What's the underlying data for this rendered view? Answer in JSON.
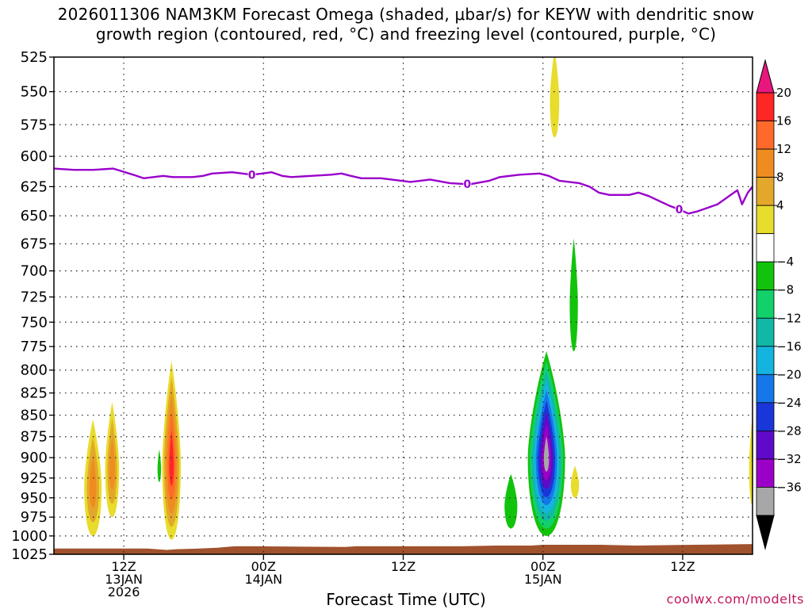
{
  "chart_data": {
    "type": "contour",
    "title_lines": [
      "2026011306 NAM3KM Forecast Omega (shaded, μbar/s) for KEYW with dendritic snow",
      "growth region (contoured, red, °C) and freezing level (contoured, purple, °C)"
    ],
    "xlabel": "Forecast Time (UTC)",
    "credit": "coolwx.com/modelts",
    "y_axis": {
      "unit": "hPa",
      "inverted": true,
      "range": [
        1025,
        525
      ],
      "ticks": [
        525,
        550,
        575,
        600,
        625,
        650,
        675,
        700,
        725,
        750,
        775,
        800,
        825,
        850,
        875,
        900,
        925,
        950,
        975,
        1000,
        1025
      ]
    },
    "x_axis": {
      "range_hours": [
        0,
        60
      ],
      "ticks": [
        {
          "hour": 6,
          "lines": [
            "12Z",
            "13JAN",
            "2026"
          ]
        },
        {
          "hour": 18,
          "lines": [
            "00Z",
            "14JAN"
          ]
        },
        {
          "hour": 30,
          "lines": [
            "12Z"
          ]
        },
        {
          "hour": 42,
          "lines": [
            "00Z",
            "15JAN"
          ]
        },
        {
          "hour": 54,
          "lines": [
            "12Z"
          ]
        }
      ]
    },
    "grid": "dotted",
    "freezing_level": {
      "color": "#9900cc",
      "label": "0",
      "label_hours": [
        17,
        35.5,
        53.7
      ],
      "points": [
        [
          0,
          610
        ],
        [
          1.7,
          611
        ],
        [
          3.4,
          611
        ],
        [
          5.1,
          610
        ],
        [
          6.8,
          615
        ],
        [
          7.7,
          618
        ],
        [
          9.4,
          616
        ],
        [
          10.2,
          617
        ],
        [
          11.9,
          617
        ],
        [
          12.8,
          616
        ],
        [
          13.6,
          614
        ],
        [
          15.3,
          613
        ],
        [
          17.0,
          615
        ],
        [
          17.9,
          614
        ],
        [
          18.7,
          613
        ],
        [
          19.6,
          616
        ],
        [
          20.4,
          617
        ],
        [
          22.1,
          616
        ],
        [
          23.8,
          615
        ],
        [
          24.7,
          614
        ],
        [
          25.5,
          616
        ],
        [
          26.4,
          618
        ],
        [
          28.1,
          618
        ],
        [
          29.8,
          620
        ],
        [
          30.6,
          621
        ],
        [
          31.5,
          620
        ],
        [
          32.3,
          619
        ],
        [
          34.0,
          622
        ],
        [
          35.7,
          623
        ],
        [
          37.4,
          620
        ],
        [
          38.3,
          617
        ],
        [
          40.0,
          615
        ],
        [
          41.7,
          614
        ],
        [
          42.5,
          616
        ],
        [
          43.4,
          620
        ],
        [
          45.1,
          622
        ],
        [
          46.0,
          625
        ],
        [
          46.8,
          630
        ],
        [
          47.7,
          632
        ],
        [
          49.4,
          632
        ],
        [
          50.2,
          630
        ],
        [
          51.1,
          633
        ],
        [
          52.8,
          641
        ],
        [
          53.6,
          644
        ],
        [
          54.5,
          648
        ],
        [
          55.3,
          646
        ],
        [
          57.0,
          640
        ],
        [
          58.7,
          628
        ],
        [
          59.1,
          640
        ],
        [
          59.6,
          630
        ],
        [
          60,
          625
        ]
      ]
    },
    "colorbar": {
      "levels": [
        20,
        16,
        12,
        8,
        4,
        -4,
        -8,
        -12,
        -16,
        -20,
        -24,
        -28,
        -32,
        -36
      ],
      "colors": [
        "#e8177e",
        "#ff2626",
        "#ff6a2a",
        "#ef8c1f",
        "#e3a82b",
        "#e8dc2c",
        "#ffffff",
        "#12c30c",
        "#12d06a",
        "#11b8a6",
        "#15b4e0",
        "#1677ea",
        "#1937d8",
        "#5f0ac9",
        "#9b00c8",
        "#a7a7a7",
        "#000000"
      ]
    },
    "omega_cells": [
      {
        "name": "rising-early-1",
        "t0": 2.6,
        "t1": 4.1,
        "pmin": 855,
        "pmax": 1000,
        "levels": [
          4,
          8,
          12
        ]
      },
      {
        "name": "rising-early-2",
        "t0": 4.4,
        "t1": 5.6,
        "pmin": 835,
        "pmax": 975,
        "levels": [
          4,
          8,
          12
        ]
      },
      {
        "name": "rising-strong-13jan",
        "t0": 9.3,
        "t1": 10.9,
        "pmin": 790,
        "pmax": 1005,
        "levels": [
          4,
          8,
          12,
          16,
          20
        ]
      },
      {
        "name": "sinking-small-13jan",
        "t0": 8.9,
        "t1": 9.2,
        "pmin": 890,
        "pmax": 930,
        "levels": [
          -4
        ]
      },
      {
        "name": "rising-top-15jan",
        "t0": 42.6,
        "t1": 43.4,
        "pmin": 520,
        "pmax": 585,
        "levels": [
          4
        ]
      },
      {
        "name": "sinking-mid-15jan",
        "t0": 44.3,
        "t1": 45.0,
        "pmin": 670,
        "pmax": 780,
        "levels": [
          -4
        ]
      },
      {
        "name": "sinking-low-15jan",
        "t0": 38.7,
        "t1": 39.8,
        "pmin": 920,
        "pmax": 990,
        "levels": [
          -4
        ]
      },
      {
        "name": "sinking-strong-15jan",
        "t0": 40.7,
        "t1": 43.9,
        "pmin": 780,
        "pmax": 1000,
        "levels": [
          -4,
          -8,
          -12,
          -16,
          -20,
          -24,
          -28,
          -32,
          -36
        ]
      },
      {
        "name": "rising-small-15jan",
        "t0": 44.4,
        "t1": 45.1,
        "pmin": 910,
        "pmax": 950,
        "levels": [
          4
        ]
      },
      {
        "name": "rising-edge-16jan",
        "t0": 59.7,
        "t1": 60.3,
        "pmin": 850,
        "pmax": 960,
        "levels": [
          4
        ]
      }
    ],
    "terrain": {
      "color": "#a0522d",
      "points": [
        [
          0,
          1017
        ],
        [
          8,
          1017
        ],
        [
          9.7,
          1019
        ],
        [
          10.5,
          1018
        ],
        [
          12.5,
          1017
        ],
        [
          14,
          1016
        ],
        [
          15.5,
          1014
        ],
        [
          17,
          1014
        ],
        [
          25,
          1015
        ],
        [
          26,
          1014
        ],
        [
          35,
          1014
        ],
        [
          38,
          1013
        ],
        [
          41,
          1013
        ],
        [
          42,
          1012
        ],
        [
          47,
          1012
        ],
        [
          50,
          1013
        ],
        [
          55,
          1012
        ],
        [
          60,
          1011
        ]
      ]
    }
  }
}
